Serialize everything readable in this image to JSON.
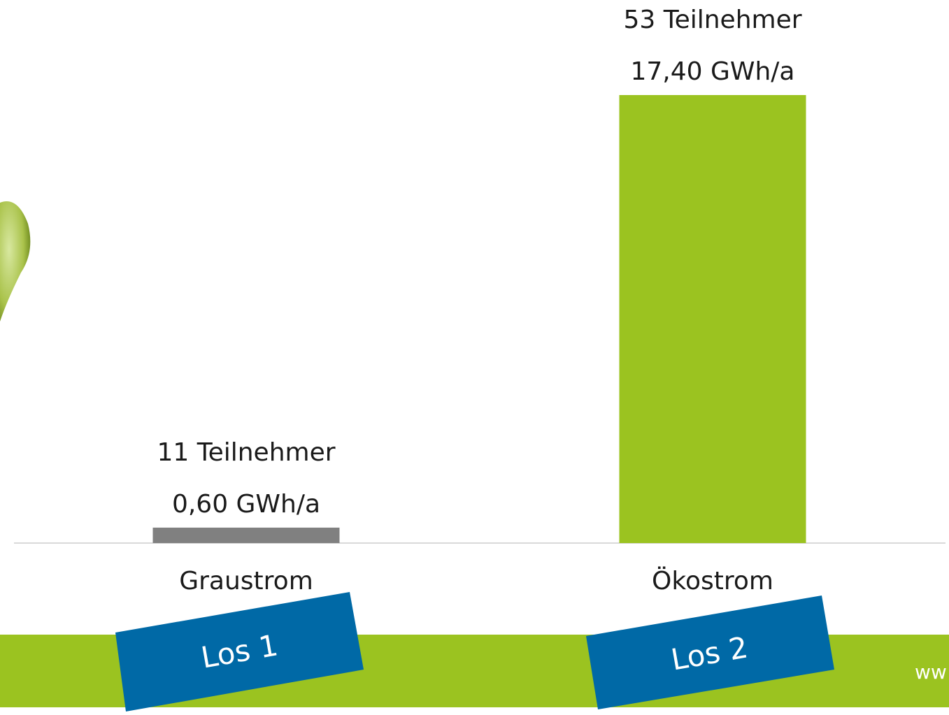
{
  "chart_data": {
    "type": "bar",
    "categories": [
      "Graustrom",
      "Ökostrom"
    ],
    "values": [
      0.6,
      17.4
    ],
    "value_labels": [
      "0,60 GWh/a",
      "17,40 GWh/a"
    ],
    "participant_labels": [
      "11 Teilnehmer",
      "53 Teilnehmer"
    ],
    "colors": [
      "#808080",
      "#9bc320"
    ],
    "lot_labels": [
      "Los 1",
      "Los 2"
    ],
    "footer_text": "ww"
  }
}
